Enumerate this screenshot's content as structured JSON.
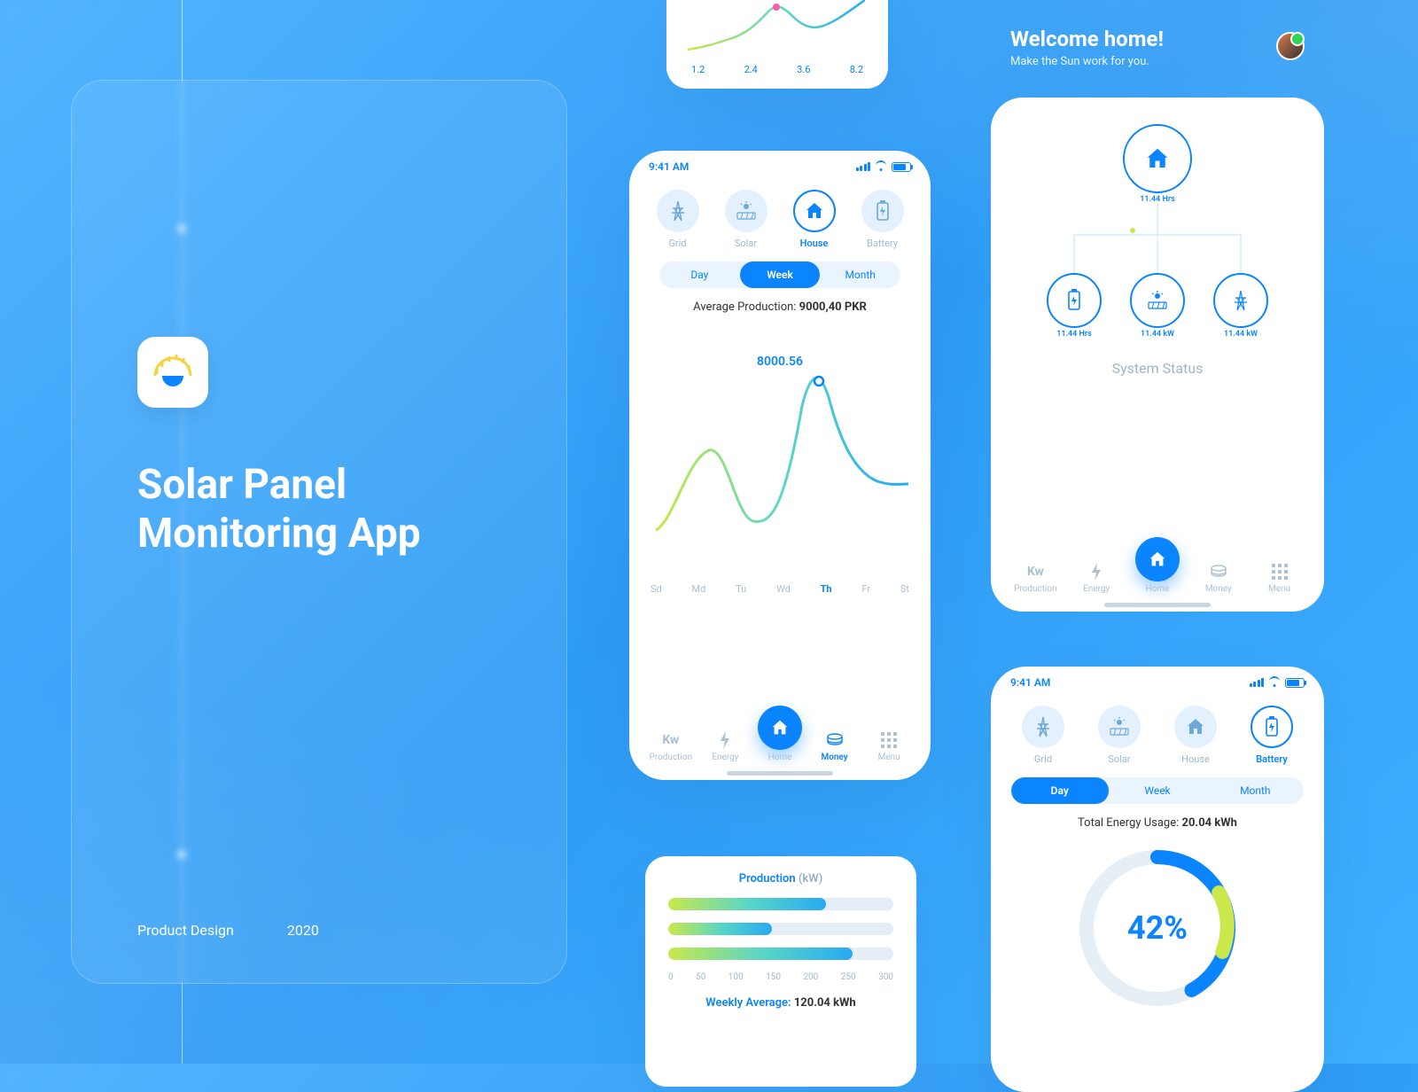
{
  "colors": {
    "primary": "#0a84ff",
    "bgLight": "#e3f1ff",
    "textMuted": "#9fb9d0",
    "axis": "#a6bacc",
    "gradStart": "#c9e84a",
    "gradMid": "#5ad7c4",
    "gradEnd": "#28a9f3",
    "donut1": "#cbe84a",
    "donut2": "#0a84ff"
  },
  "left": {
    "title1": "Solar Panel",
    "title2": "Monitoring App",
    "footer1": "Product Design",
    "footer2": "2020"
  },
  "miniChart": {
    "type": "line",
    "points": [
      0.15,
      0.25,
      0.35,
      0.55,
      0.62,
      0.5,
      0.4,
      0.42,
      0.58
    ],
    "markerIdx": 4,
    "markerColor": "#ff5aa8",
    "xTicks": [
      "1.2",
      "2.4",
      "3.6",
      "8.2"
    ]
  },
  "screenA": {
    "time": "9:41 AM",
    "tabs": [
      {
        "label": "Grid",
        "sel": false,
        "icon": "grid"
      },
      {
        "label": "Solar",
        "sel": false,
        "icon": "solar"
      },
      {
        "label": "House",
        "sel": true,
        "icon": "house"
      },
      {
        "label": "Battery",
        "sel": false,
        "icon": "battery"
      }
    ],
    "segments": [
      {
        "label": "Day",
        "active": false
      },
      {
        "label": "Week",
        "active": true
      },
      {
        "label": "Month",
        "active": false
      }
    ],
    "avgLabel": "Average Production: ",
    "avgValue": "9000,40 PKR",
    "chart": {
      "type": "line",
      "peakLabel": "8000.56",
      "values": [
        0.28,
        0.6,
        0.3,
        0.36,
        1.0,
        0.55,
        0.45
      ],
      "xLabels": [
        "Sd",
        "Md",
        "Tu",
        "Wd",
        "Th",
        "Fr",
        "St"
      ],
      "highlightIdx": 4,
      "highlightBand": "#eaf4ff"
    },
    "bottomNav": [
      {
        "label": "Production",
        "icon": "Kw"
      },
      {
        "label": "Energy",
        "icon": "bolt"
      },
      {
        "label": "Home",
        "icon": "home",
        "big": true
      },
      {
        "label": "Money",
        "icon": "coins",
        "active": true
      },
      {
        "label": "Menu",
        "icon": "grid9"
      }
    ]
  },
  "screenB": {
    "welcomeTitle": "Welcome home!",
    "welcomeSub": "Make the Sun work for you.",
    "nodes": {
      "top": {
        "icon": "house",
        "val": "11.44 Hrs"
      },
      "left": {
        "icon": "battery",
        "val": "11.44 Hrs"
      },
      "mid": {
        "icon": "solar",
        "val": "11.44 kW"
      },
      "right": {
        "icon": "grid",
        "val": "11.44 kW"
      }
    },
    "statusLabel": "System Status",
    "bottomNav": [
      {
        "label": "Production",
        "icon": "Kw"
      },
      {
        "label": "Energy",
        "icon": "bolt"
      },
      {
        "label": "Home",
        "icon": "home",
        "big": true
      },
      {
        "label": "Money",
        "icon": "coins"
      },
      {
        "label": "Menu",
        "icon": "grid9"
      }
    ]
  },
  "screenC": {
    "time": "9:41 AM",
    "tabs": [
      {
        "label": "Grid",
        "sel": false
      },
      {
        "label": "Solar",
        "sel": false
      },
      {
        "label": "House",
        "sel": false
      },
      {
        "label": "Battery",
        "sel": true
      }
    ],
    "segments": [
      {
        "label": "Day",
        "active": true
      },
      {
        "label": "Week",
        "active": false
      },
      {
        "label": "Month",
        "active": false
      }
    ],
    "usageLabel": "Total Energy Usage: ",
    "usageValue": "20.04 kWh",
    "donut": {
      "pct": 42,
      "pctLabel": "42%"
    }
  },
  "prodCard": {
    "title": "Production ",
    "unit": "(kW)",
    "bars": [
      0.7,
      0.46,
      0.82
    ],
    "ticks": [
      "0",
      "50",
      "100",
      "150",
      "200",
      "250",
      "300"
    ],
    "wkTitle": "Weekly Average: ",
    "wkVal": "120.04 kWh"
  }
}
